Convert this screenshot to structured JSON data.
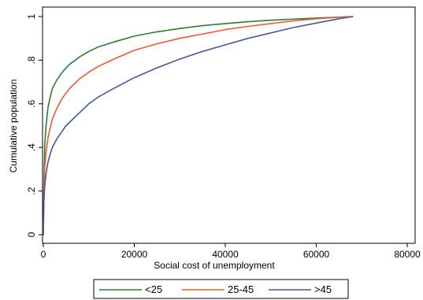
{
  "chart_data": {
    "type": "line",
    "xlabel": "Social cost of unemployment",
    "ylabel": "Cumulative population",
    "xlim": [
      0,
      80000
    ],
    "ylim": [
      0,
      1
    ],
    "xticks": [
      0,
      20000,
      40000,
      60000,
      80000
    ],
    "xtick_labels": [
      "0",
      "20000",
      "40000",
      "60000",
      "80000"
    ],
    "yticks": [
      0,
      0.2,
      0.4,
      0.6,
      0.8,
      1
    ],
    "ytick_labels": [
      "0",
      ".2",
      ".4",
      ".6",
      ".8",
      "1"
    ],
    "grid": false,
    "legend_position": "bottom",
    "series": [
      {
        "name": "<25",
        "color": "#2e7d32",
        "x": [
          0,
          100,
          300,
          600,
          1000,
          1500,
          2000,
          3000,
          4000,
          5000,
          6000,
          8000,
          10000,
          12000,
          15000,
          20000,
          25000,
          30000,
          35000,
          40000,
          45000,
          50000,
          55000,
          60000,
          65000,
          68000
        ],
        "y": [
          0,
          0.22,
          0.4,
          0.5,
          0.58,
          0.63,
          0.67,
          0.71,
          0.74,
          0.765,
          0.785,
          0.815,
          0.84,
          0.86,
          0.88,
          0.91,
          0.93,
          0.945,
          0.958,
          0.968,
          0.976,
          0.983,
          0.988,
          0.993,
          0.997,
          1.0
        ]
      },
      {
        "name": "25-45",
        "color": "#f05a32",
        "x": [
          0,
          100,
          300,
          600,
          1000,
          1500,
          2000,
          3000,
          4000,
          5000,
          6000,
          8000,
          10000,
          12000,
          15000,
          20000,
          25000,
          30000,
          35000,
          40000,
          45000,
          50000,
          55000,
          60000,
          65000,
          68000
        ],
        "y": [
          0,
          0.18,
          0.3,
          0.38,
          0.44,
          0.49,
          0.53,
          0.58,
          0.62,
          0.65,
          0.675,
          0.715,
          0.745,
          0.77,
          0.8,
          0.845,
          0.875,
          0.9,
          0.92,
          0.94,
          0.955,
          0.968,
          0.98,
          0.99,
          0.997,
          1.0
        ]
      },
      {
        "name": ">45",
        "color": "#3f5c9e",
        "x": [
          0,
          100,
          300,
          600,
          1000,
          1500,
          2000,
          3000,
          4000,
          5000,
          6000,
          8000,
          10000,
          12000,
          15000,
          20000,
          25000,
          30000,
          35000,
          40000,
          45000,
          50000,
          55000,
          60000,
          65000,
          68000
        ],
        "y": [
          0,
          0.14,
          0.22,
          0.28,
          0.33,
          0.37,
          0.4,
          0.44,
          0.47,
          0.5,
          0.52,
          0.56,
          0.6,
          0.63,
          0.665,
          0.72,
          0.765,
          0.805,
          0.84,
          0.87,
          0.9,
          0.925,
          0.95,
          0.97,
          0.99,
          1.0
        ]
      }
    ]
  }
}
